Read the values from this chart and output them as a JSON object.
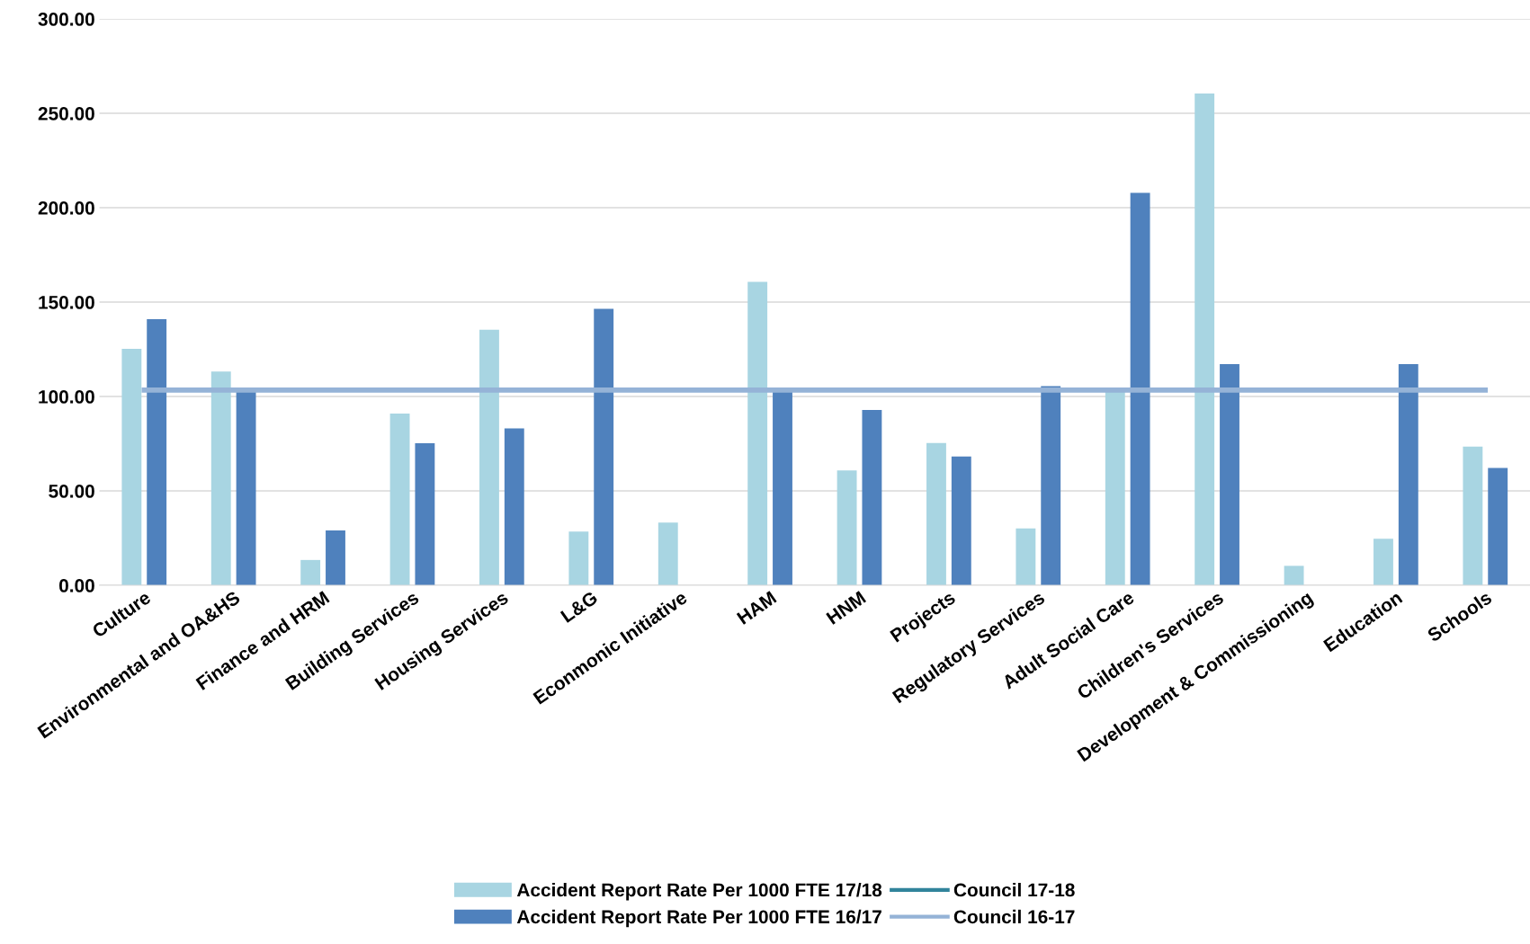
{
  "chart_data": {
    "type": "bar",
    "categories": [
      "Culture",
      "Environmental and OA&HS",
      "Finance and HRM",
      "Building Services",
      "Housing Services",
      "L&G",
      "Econmonic Initiative",
      "HAM",
      "HNM",
      "Projects",
      "Regulatory Services",
      "Adult Social Care",
      "Children's Services",
      "Development & Commissioning",
      "Education",
      "Schools"
    ],
    "series": [
      {
        "name": "Accident Report Rate Per 1000 FTE 17/18",
        "color": "#a8d5e2",
        "values": [
          125.2,
          113.2,
          13.4,
          91.0,
          135.4,
          28.4,
          33.2,
          160.7,
          60.8,
          75.4,
          30.1,
          103.3,
          260.5,
          10.3,
          24.6,
          73.4
        ]
      },
      {
        "name": "Accident Report Rate Per 1000 FTE 16/17",
        "color": "#4f81bd",
        "values": [
          140.9,
          102.7,
          29.1,
          75.2,
          83.1,
          146.4,
          null,
          102.4,
          92.8,
          68.2,
          105.5,
          207.9,
          117.2,
          null,
          117.2,
          62.2
        ]
      },
      {
        "name": "Council 17-18",
        "type": "line",
        "color": "#31849b",
        "values": [
          null,
          null,
          null,
          null,
          null,
          null,
          null,
          null,
          null,
          null,
          null,
          null,
          null,
          null,
          null,
          null
        ]
      },
      {
        "name": "Council 16-17",
        "type": "line",
        "color": "#95b3d7",
        "values": [
          103.4,
          103.4,
          103.4,
          103.4,
          103.4,
          103.4,
          103.4,
          103.4,
          103.4,
          103.4,
          103.4,
          103.4,
          103.4,
          103.4,
          103.4,
          103.4
        ]
      }
    ],
    "ylim": [
      0,
      300
    ],
    "yticks": [
      {
        "value": 0,
        "label": "0.00"
      },
      {
        "value": 50,
        "label": "50.00"
      },
      {
        "value": 100,
        "label": "100.00"
      },
      {
        "value": 150,
        "label": "150.00"
      },
      {
        "value": 200,
        "label": "200.00"
      },
      {
        "value": 250,
        "label": "250.00"
      },
      {
        "value": 300,
        "label": "300.00"
      }
    ],
    "grid": "y",
    "legend": "bottom"
  }
}
